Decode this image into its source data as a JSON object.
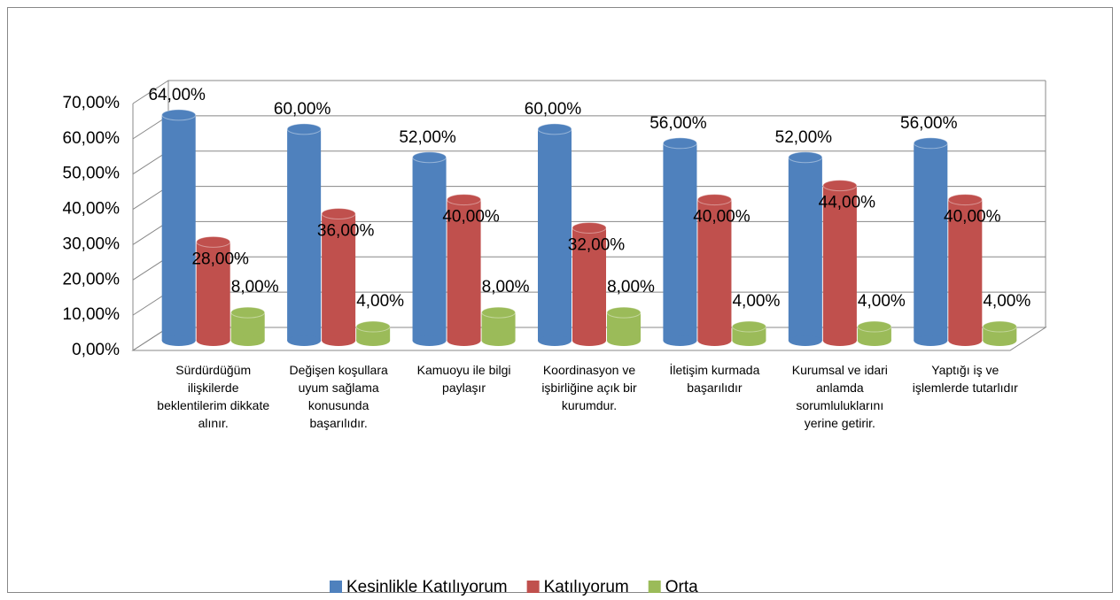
{
  "chart_data": {
    "type": "bar",
    "categories": [
      "Sürdürdüğüm ilişkilerde beklentilerim dikkate alınır.",
      "Değişen koşullara uyum sağlama konusunda başarılıdır.",
      "Kamuoyu ile bilgi paylaşır",
      "Koordinasyon ve işbirliğine açık bir kurumdur.",
      "İletişim kurmada başarılıdır",
      "Kurumsal ve idari anlamda sorumluluklarını yerine getirir.",
      "Yaptığı iş ve işlemlerde tutarlıdır"
    ],
    "series": [
      {
        "name": "Kesinlikle Katılıyorum",
        "color": "#4f81bd",
        "values": [
          64,
          60,
          52,
          60,
          56,
          52,
          56
        ],
        "value_labels": [
          "64,00%",
          "60,00%",
          "52,00%",
          "60,00%",
          "56,00%",
          "52,00%",
          "56,00%"
        ]
      },
      {
        "name": "Katılıyorum",
        "color": "#c0504d",
        "values": [
          28,
          36,
          40,
          32,
          40,
          44,
          40
        ],
        "value_labels": [
          "28,00%",
          "36,00%",
          "40,00%",
          "32,00%",
          "40,00%",
          "44,00%",
          "40,00%"
        ]
      },
      {
        "name": "Orta",
        "color": "#9bbb59",
        "values": [
          8,
          4,
          8,
          8,
          4,
          4,
          4
        ],
        "value_labels": [
          "8,00%",
          "4,00%",
          "8,00%",
          "8,00%",
          "4,00%",
          "4,00%",
          "4,00%"
        ]
      }
    ],
    "ylim": [
      0,
      70
    ],
    "yticks": [
      {
        "value": 0,
        "label": "0,00%"
      },
      {
        "value": 10,
        "label": "10,00%"
      },
      {
        "value": 20,
        "label": "20,00%"
      },
      {
        "value": 30,
        "label": "30,00%"
      },
      {
        "value": 40,
        "label": "40,00%"
      },
      {
        "value": 50,
        "label": "50,00%"
      },
      {
        "value": 60,
        "label": "60,00%"
      },
      {
        "value": 70,
        "label": "70,00%"
      }
    ],
    "grid": true,
    "legend": "bottom"
  }
}
